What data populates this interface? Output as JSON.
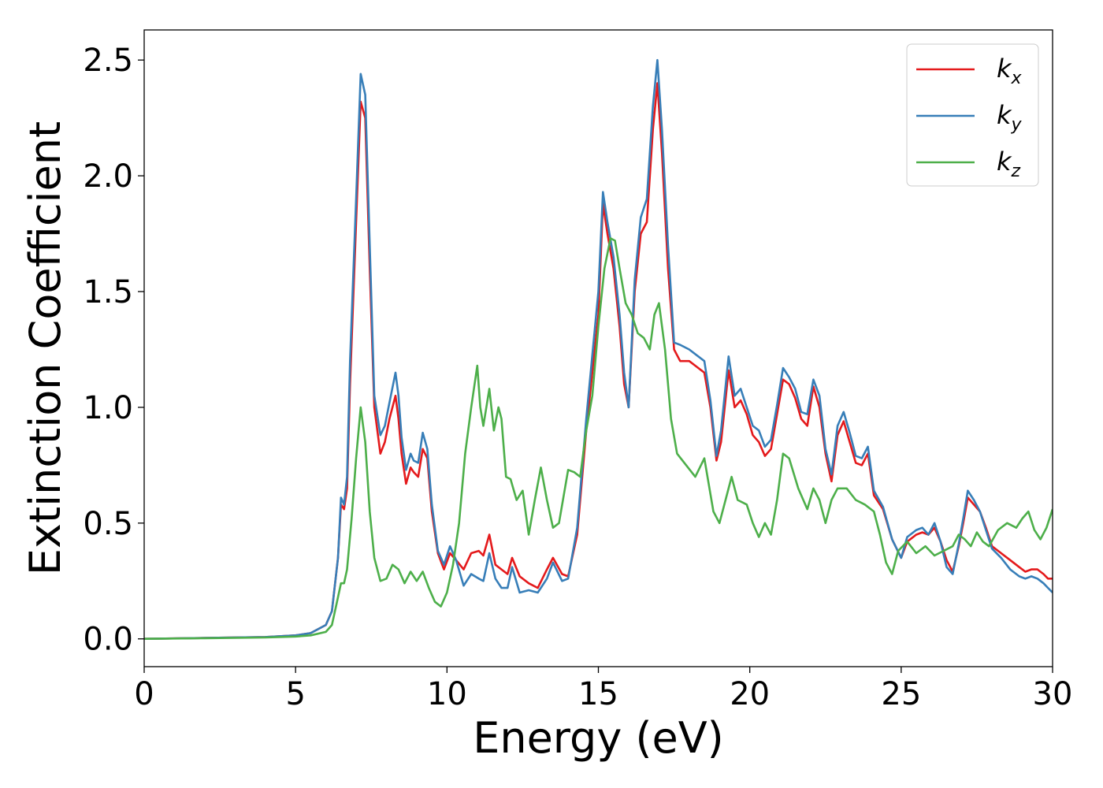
{
  "chart_data": {
    "type": "line",
    "title": "",
    "xlabel": "Energy (eV)",
    "ylabel": "Extinction Coefficient",
    "xlim": [
      0,
      30
    ],
    "ylim": [
      -0.12,
      2.63
    ],
    "xticks": [
      0,
      5,
      10,
      15,
      20,
      25,
      30
    ],
    "xtick_labels": [
      "0",
      "5",
      "10",
      "15",
      "20",
      "25",
      "30"
    ],
    "yticks": [
      0.0,
      0.5,
      1.0,
      1.5,
      2.0,
      2.5
    ],
    "ytick_labels": [
      "0.0",
      "0.5",
      "1.0",
      "1.5",
      "2.0",
      "2.5"
    ],
    "grid": false,
    "legend": "top-right",
    "series": [
      {
        "name": "k_x",
        "legend_main": "k",
        "legend_sub": "x",
        "color": "#e41a1c",
        "x": [
          0,
          2,
          4,
          5,
          5.5,
          6,
          6.2,
          6.4,
          6.5,
          6.6,
          6.7,
          6.8,
          7.0,
          7.15,
          7.3,
          7.45,
          7.6,
          7.8,
          7.95,
          8.1,
          8.3,
          8.4,
          8.5,
          8.65,
          8.8,
          8.9,
          9.05,
          9.2,
          9.35,
          9.5,
          9.7,
          9.9,
          10.1,
          10.3,
          10.55,
          10.8,
          11.05,
          11.2,
          11.4,
          11.6,
          11.8,
          12.0,
          12.15,
          12.4,
          12.7,
          13.0,
          13.3,
          13.5,
          13.8,
          14.0,
          14.3,
          14.6,
          15.0,
          15.15,
          15.3,
          15.5,
          15.7,
          15.85,
          16.0,
          16.2,
          16.4,
          16.6,
          16.8,
          16.95,
          17.1,
          17.3,
          17.5,
          17.7,
          18.0,
          18.3,
          18.5,
          18.7,
          18.9,
          19.05,
          19.3,
          19.5,
          19.7,
          19.9,
          20.1,
          20.3,
          20.5,
          20.7,
          20.9,
          21.1,
          21.3,
          21.5,
          21.7,
          21.9,
          22.1,
          22.3,
          22.5,
          22.7,
          22.9,
          23.1,
          23.3,
          23.5,
          23.7,
          23.9,
          24.1,
          24.4,
          24.7,
          25.0,
          25.2,
          25.5,
          25.7,
          25.9,
          26.1,
          26.3,
          26.5,
          26.7,
          26.9,
          27.05,
          27.2,
          27.4,
          27.6,
          27.8,
          28.0,
          28.3,
          28.6,
          28.9,
          29.1,
          29.3,
          29.5,
          29.7,
          29.85,
          30
        ],
        "y": [
          0.0,
          0.004,
          0.008,
          0.015,
          0.025,
          0.06,
          0.12,
          0.35,
          0.58,
          0.56,
          0.65,
          1.1,
          1.8,
          2.32,
          2.25,
          1.6,
          1.0,
          0.8,
          0.85,
          0.95,
          1.05,
          0.95,
          0.8,
          0.67,
          0.74,
          0.72,
          0.7,
          0.82,
          0.78,
          0.55,
          0.37,
          0.3,
          0.37,
          0.34,
          0.3,
          0.37,
          0.38,
          0.36,
          0.45,
          0.32,
          0.3,
          0.28,
          0.35,
          0.27,
          0.24,
          0.22,
          0.3,
          0.35,
          0.28,
          0.27,
          0.45,
          0.9,
          1.4,
          1.88,
          1.75,
          1.6,
          1.35,
          1.1,
          1.0,
          1.5,
          1.75,
          1.8,
          2.2,
          2.4,
          2.1,
          1.6,
          1.25,
          1.2,
          1.2,
          1.17,
          1.15,
          1.0,
          0.77,
          0.85,
          1.16,
          1.0,
          1.03,
          0.97,
          0.88,
          0.85,
          0.79,
          0.82,
          0.97,
          1.12,
          1.1,
          1.04,
          0.95,
          0.92,
          1.09,
          1.0,
          0.8,
          0.68,
          0.88,
          0.94,
          0.85,
          0.76,
          0.75,
          0.8,
          0.62,
          0.56,
          0.43,
          0.35,
          0.42,
          0.45,
          0.46,
          0.45,
          0.48,
          0.42,
          0.34,
          0.29,
          0.4,
          0.5,
          0.61,
          0.58,
          0.55,
          0.48,
          0.4,
          0.37,
          0.34,
          0.31,
          0.29,
          0.3,
          0.3,
          0.28,
          0.26,
          0.26
        ]
      },
      {
        "name": "k_y",
        "legend_main": "k",
        "legend_sub": "y",
        "color": "#377eb8",
        "x": [
          0,
          2,
          4,
          5,
          5.5,
          6,
          6.2,
          6.4,
          6.5,
          6.6,
          6.7,
          6.8,
          7.0,
          7.15,
          7.3,
          7.45,
          7.6,
          7.8,
          7.95,
          8.1,
          8.3,
          8.4,
          8.5,
          8.65,
          8.8,
          8.9,
          9.05,
          9.2,
          9.35,
          9.5,
          9.7,
          9.9,
          10.1,
          10.3,
          10.55,
          10.8,
          11.05,
          11.2,
          11.4,
          11.6,
          11.8,
          12.0,
          12.15,
          12.4,
          12.7,
          13.0,
          13.3,
          13.5,
          13.8,
          14.0,
          14.3,
          14.6,
          15.0,
          15.15,
          15.3,
          15.5,
          15.7,
          15.85,
          16.0,
          16.2,
          16.4,
          16.6,
          16.8,
          16.95,
          17.1,
          17.3,
          17.5,
          17.7,
          18.0,
          18.3,
          18.5,
          18.7,
          18.9,
          19.05,
          19.3,
          19.5,
          19.7,
          19.9,
          20.1,
          20.3,
          20.5,
          20.7,
          20.9,
          21.1,
          21.3,
          21.5,
          21.7,
          21.9,
          22.1,
          22.3,
          22.5,
          22.7,
          22.9,
          23.1,
          23.3,
          23.5,
          23.7,
          23.9,
          24.1,
          24.4,
          24.7,
          25.0,
          25.2,
          25.5,
          25.7,
          25.9,
          26.1,
          26.3,
          26.5,
          26.7,
          26.9,
          27.05,
          27.2,
          27.4,
          27.6,
          27.8,
          28.0,
          28.3,
          28.6,
          28.9,
          29.1,
          29.3,
          29.5,
          29.7,
          29.85,
          30
        ],
        "y": [
          0.0,
          0.004,
          0.008,
          0.015,
          0.025,
          0.06,
          0.12,
          0.35,
          0.61,
          0.58,
          0.7,
          1.2,
          1.9,
          2.44,
          2.35,
          1.7,
          1.05,
          0.88,
          0.92,
          1.02,
          1.15,
          1.05,
          0.87,
          0.73,
          0.8,
          0.77,
          0.76,
          0.89,
          0.82,
          0.58,
          0.38,
          0.32,
          0.4,
          0.34,
          0.23,
          0.28,
          0.26,
          0.25,
          0.37,
          0.26,
          0.22,
          0.22,
          0.31,
          0.2,
          0.21,
          0.2,
          0.26,
          0.33,
          0.25,
          0.26,
          0.48,
          0.95,
          1.5,
          1.93,
          1.8,
          1.65,
          1.4,
          1.15,
          1.0,
          1.55,
          1.82,
          1.9,
          2.3,
          2.5,
          2.2,
          1.7,
          1.28,
          1.27,
          1.25,
          1.22,
          1.2,
          1.03,
          0.79,
          0.9,
          1.22,
          1.05,
          1.08,
          1.0,
          0.92,
          0.9,
          0.83,
          0.86,
          1.01,
          1.17,
          1.13,
          1.08,
          0.98,
          0.97,
          1.12,
          1.05,
          0.82,
          0.71,
          0.92,
          0.98,
          0.89,
          0.79,
          0.78,
          0.83,
          0.64,
          0.57,
          0.43,
          0.35,
          0.44,
          0.47,
          0.48,
          0.45,
          0.5,
          0.42,
          0.31,
          0.28,
          0.41,
          0.52,
          0.64,
          0.6,
          0.55,
          0.47,
          0.39,
          0.35,
          0.3,
          0.27,
          0.26,
          0.27,
          0.26,
          0.24,
          0.22,
          0.2
        ]
      },
      {
        "name": "k_z",
        "legend_main": "k",
        "legend_sub": "z",
        "color": "#4daf4a",
        "x": [
          0,
          2,
          4,
          5,
          5.5,
          6,
          6.2,
          6.35,
          6.5,
          6.6,
          6.7,
          6.85,
          7.0,
          7.15,
          7.3,
          7.45,
          7.6,
          7.8,
          8.0,
          8.2,
          8.4,
          8.6,
          8.8,
          9.0,
          9.2,
          9.4,
          9.6,
          9.8,
          10.0,
          10.2,
          10.4,
          10.6,
          10.8,
          11.0,
          11.1,
          11.2,
          11.3,
          11.4,
          11.55,
          11.7,
          11.8,
          11.95,
          12.1,
          12.3,
          12.5,
          12.7,
          12.9,
          13.1,
          13.3,
          13.5,
          13.7,
          14.0,
          14.2,
          14.4,
          14.6,
          14.8,
          15.0,
          15.2,
          15.4,
          15.55,
          15.7,
          15.9,
          16.1,
          16.3,
          16.5,
          16.7,
          16.85,
          17.0,
          17.2,
          17.4,
          17.6,
          17.9,
          18.2,
          18.5,
          18.8,
          19.0,
          19.2,
          19.4,
          19.6,
          19.9,
          20.1,
          20.3,
          20.5,
          20.7,
          20.9,
          21.1,
          21.3,
          21.6,
          21.9,
          22.1,
          22.3,
          22.5,
          22.7,
          22.9,
          23.2,
          23.5,
          23.8,
          24.1,
          24.3,
          24.5,
          24.7,
          24.9,
          25.2,
          25.5,
          25.8,
          26.1,
          26.4,
          26.7,
          26.9,
          27.1,
          27.3,
          27.5,
          27.7,
          27.9,
          28.2,
          28.5,
          28.8,
          29.0,
          29.2,
          29.4,
          29.6,
          29.8,
          30
        ],
        "y": [
          0.0,
          0.003,
          0.006,
          0.01,
          0.015,
          0.03,
          0.06,
          0.15,
          0.24,
          0.24,
          0.3,
          0.52,
          0.78,
          1.0,
          0.85,
          0.55,
          0.35,
          0.25,
          0.26,
          0.32,
          0.3,
          0.24,
          0.29,
          0.25,
          0.29,
          0.22,
          0.16,
          0.14,
          0.2,
          0.32,
          0.5,
          0.8,
          1.0,
          1.18,
          1.0,
          0.92,
          1.0,
          1.08,
          0.9,
          1.0,
          0.95,
          0.7,
          0.69,
          0.6,
          0.64,
          0.45,
          0.6,
          0.74,
          0.6,
          0.48,
          0.5,
          0.73,
          0.72,
          0.7,
          0.9,
          1.05,
          1.35,
          1.6,
          1.73,
          1.72,
          1.6,
          1.45,
          1.4,
          1.32,
          1.3,
          1.25,
          1.4,
          1.45,
          1.25,
          0.95,
          0.8,
          0.75,
          0.7,
          0.78,
          0.55,
          0.5,
          0.6,
          0.7,
          0.6,
          0.58,
          0.5,
          0.44,
          0.5,
          0.45,
          0.6,
          0.8,
          0.78,
          0.65,
          0.56,
          0.65,
          0.6,
          0.5,
          0.6,
          0.65,
          0.65,
          0.6,
          0.58,
          0.55,
          0.45,
          0.33,
          0.28,
          0.38,
          0.42,
          0.37,
          0.4,
          0.36,
          0.38,
          0.4,
          0.45,
          0.43,
          0.4,
          0.46,
          0.42,
          0.4,
          0.47,
          0.5,
          0.48,
          0.52,
          0.55,
          0.47,
          0.43,
          0.48,
          0.56
        ]
      }
    ]
  }
}
